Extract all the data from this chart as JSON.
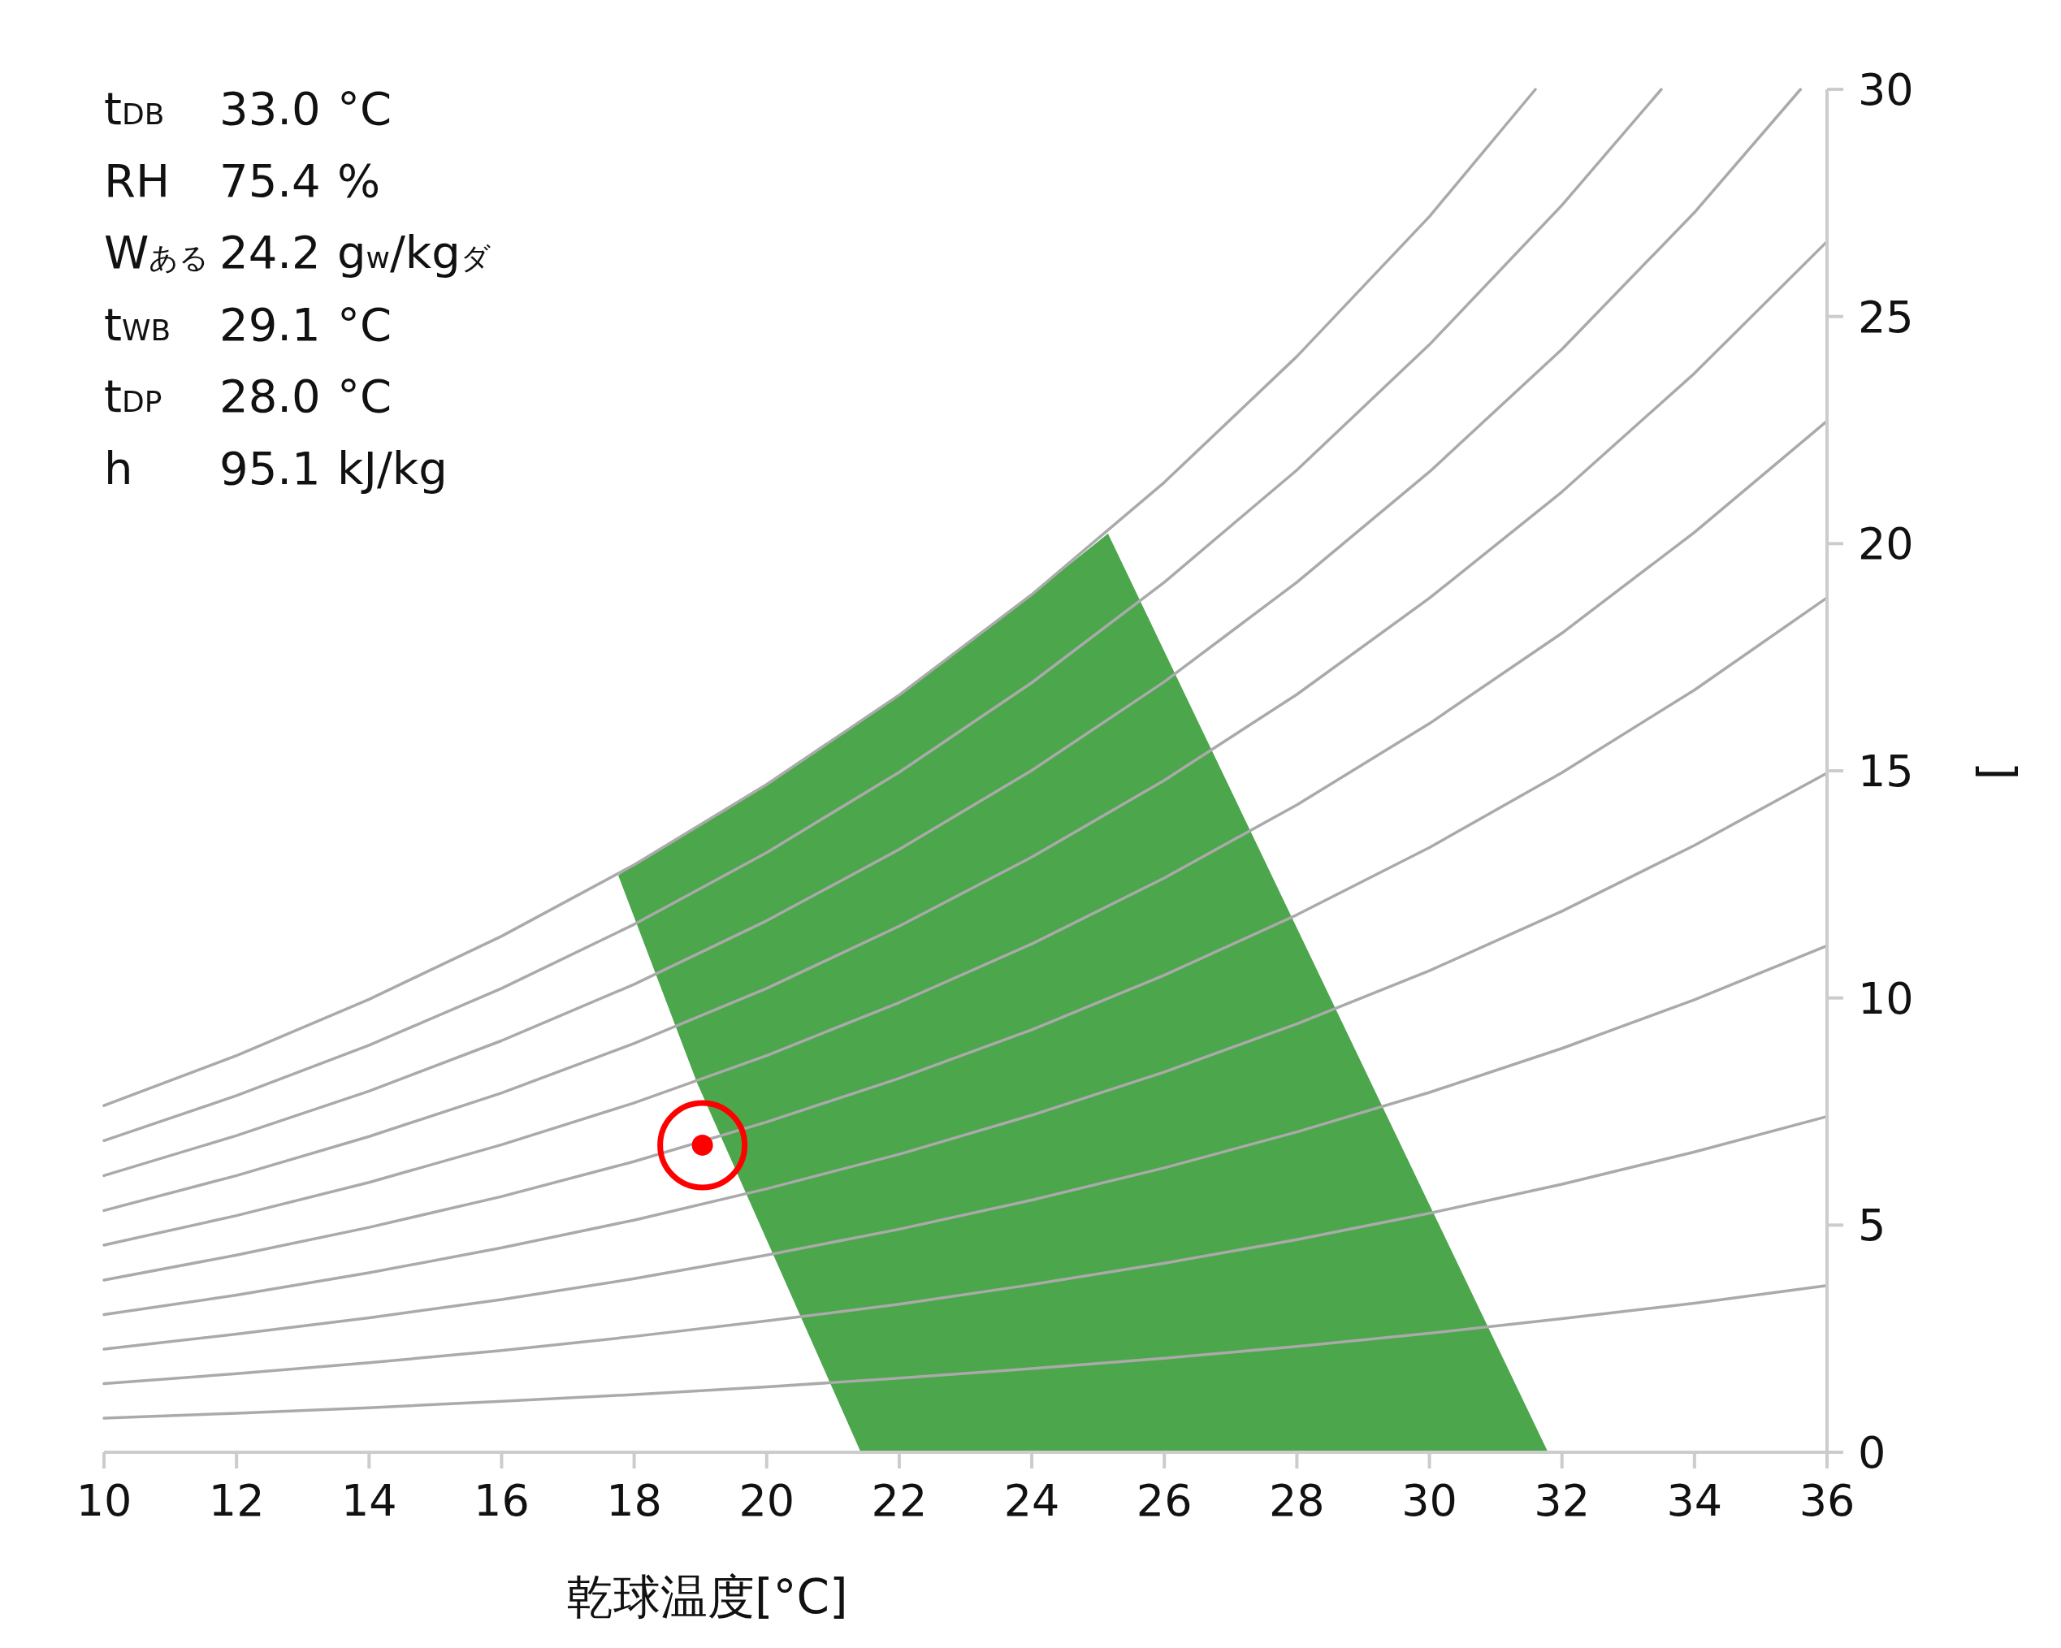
{
  "chart_data": {
    "type": "line",
    "xlabel": "乾球温度[°C]",
    "y2label": "]",
    "xlim": [
      10,
      36
    ],
    "xticks": [
      10,
      12,
      14,
      16,
      18,
      20,
      22,
      24,
      26,
      28,
      30,
      32,
      34,
      36
    ],
    "y2lim": [
      0,
      30
    ],
    "y2ticks": [
      0,
      5,
      10,
      15,
      20,
      25,
      30
    ],
    "annotations": [
      "t$_{DB}$ 33.0 °C",
      "RH 75.4 %",
      "W$_{ある}$ 24.2 g$_{w}$/kg$_{ダ}$",
      "t$_{WB}$ 29.1 °C",
      "t$_{DP}$ 28.0 °C",
      "h 95.1 kJ/kg"
    ],
    "series": [
      {
        "type": "line",
        "axis": "y2",
        "color": "#aaaaaa",
        "x": [
          10,
          12,
          14,
          16,
          18,
          20,
          22,
          24,
          26,
          28,
          30,
          31.6
        ],
        "values": [
          7.63,
          8.73,
          9.97,
          11.36,
          12.93,
          14.7,
          16.67,
          18.88,
          21.35,
          24.12,
          27.2,
          30
        ]
      },
      {
        "type": "line",
        "axis": "y2",
        "color": "#aaaaaa",
        "x": [
          10,
          12,
          14,
          16,
          18,
          20,
          22,
          24,
          26,
          28,
          30,
          32,
          33.5
        ],
        "values": [
          6.86,
          7.85,
          8.96,
          10.21,
          11.62,
          13.2,
          14.97,
          16.94,
          19.15,
          21.62,
          24.38,
          27.45,
          30
        ]
      },
      {
        "type": "line",
        "axis": "y2",
        "color": "#aaaaaa",
        "x": [
          10,
          12,
          14,
          16,
          18,
          20,
          22,
          24,
          26,
          28,
          30,
          32,
          34,
          35.6
        ],
        "values": [
          6.09,
          6.97,
          7.95,
          9.06,
          10.3,
          11.7,
          13.27,
          15.01,
          16.96,
          19.15,
          21.58,
          24.28,
          27.29,
          30
        ]
      },
      {
        "type": "line",
        "axis": "y2",
        "color": "#aaaaaa",
        "x": [
          10,
          12,
          14,
          16,
          18,
          20,
          22,
          24,
          26,
          28,
          30,
          32,
          34,
          36
        ],
        "values": [
          5.32,
          6.09,
          6.95,
          7.91,
          9.0,
          10.21,
          11.58,
          13.1,
          14.79,
          16.68,
          18.8,
          21.14,
          23.75,
          26.65
        ]
      },
      {
        "type": "line",
        "axis": "y2",
        "color": "#aaaaaa",
        "x": [
          10,
          12,
          14,
          16,
          18,
          20,
          22,
          24,
          26,
          28,
          30,
          32,
          34,
          36
        ],
        "values": [
          4.56,
          5.21,
          5.94,
          6.77,
          7.69,
          8.73,
          9.9,
          11.19,
          12.64,
          14.25,
          16.04,
          18.03,
          20.25,
          22.7
        ]
      },
      {
        "type": "line",
        "axis": "y2",
        "color": "#aaaaaa",
        "x": [
          10,
          12,
          14,
          16,
          18,
          20,
          22,
          24,
          26,
          28,
          30,
          32,
          34,
          36
        ],
        "values": [
          3.79,
          4.34,
          4.95,
          5.63,
          6.4,
          7.27,
          8.23,
          9.3,
          10.5,
          11.83,
          13.31,
          14.96,
          16.78,
          18.81
        ]
      },
      {
        "type": "line",
        "axis": "y2",
        "color": "#aaaaaa",
        "x": [
          10,
          12,
          14,
          16,
          18,
          20,
          22,
          24,
          26,
          28,
          30,
          32,
          34,
          36
        ],
        "values": [
          3.03,
          3.46,
          3.95,
          4.5,
          5.11,
          5.8,
          6.56,
          7.42,
          8.37,
          9.43,
          10.6,
          11.91,
          13.36,
          14.95
        ]
      },
      {
        "type": "line",
        "axis": "y2",
        "color": "#aaaaaa",
        "x": [
          10,
          12,
          14,
          16,
          18,
          20,
          22,
          24,
          26,
          28,
          30,
          32,
          34,
          36
        ],
        "values": [
          2.27,
          2.6,
          2.96,
          3.36,
          3.82,
          4.34,
          4.91,
          5.55,
          6.26,
          7.05,
          7.92,
          8.89,
          9.96,
          11.15
        ]
      },
      {
        "type": "line",
        "axis": "y2",
        "color": "#aaaaaa",
        "x": [
          10,
          12,
          14,
          16,
          18,
          20,
          22,
          24,
          26,
          28,
          30,
          32,
          34,
          36
        ],
        "values": [
          1.51,
          1.73,
          1.97,
          2.24,
          2.55,
          2.89,
          3.26,
          3.69,
          4.16,
          4.68,
          5.26,
          5.9,
          6.61,
          7.39
        ]
      },
      {
        "type": "line",
        "axis": "y2",
        "color": "#aaaaaa",
        "x": [
          10,
          12,
          14,
          16,
          18,
          20,
          22,
          24,
          26,
          28,
          30,
          32,
          34,
          36
        ],
        "values": [
          0.75,
          0.86,
          0.98,
          1.12,
          1.27,
          1.44,
          1.63,
          1.84,
          2.07,
          2.33,
          2.62,
          2.94,
          3.28,
          3.67
        ]
      },
      {
        "type": "area",
        "axis": "y2",
        "color": "#008000",
        "x": [
          17.76,
          18,
          18.95,
          20,
          21.42,
          22,
          24,
          25.15,
          26,
          28,
          30,
          31.79,
          21.42,
          18.95
        ],
        "values": [
          12.7,
          12.93,
          13.77,
          14.7,
          16.1,
          16.67,
          18.88,
          20.22,
          17.63,
          11.54,
          5.45,
          0,
          0,
          8.13
        ]
      },
      {
        "type": "scatter",
        "axis": "y2",
        "color": "#ff0000",
        "marker": "circle",
        "x": [
          19.03
        ],
        "values": [
          6.76
        ]
      }
    ]
  }
}
